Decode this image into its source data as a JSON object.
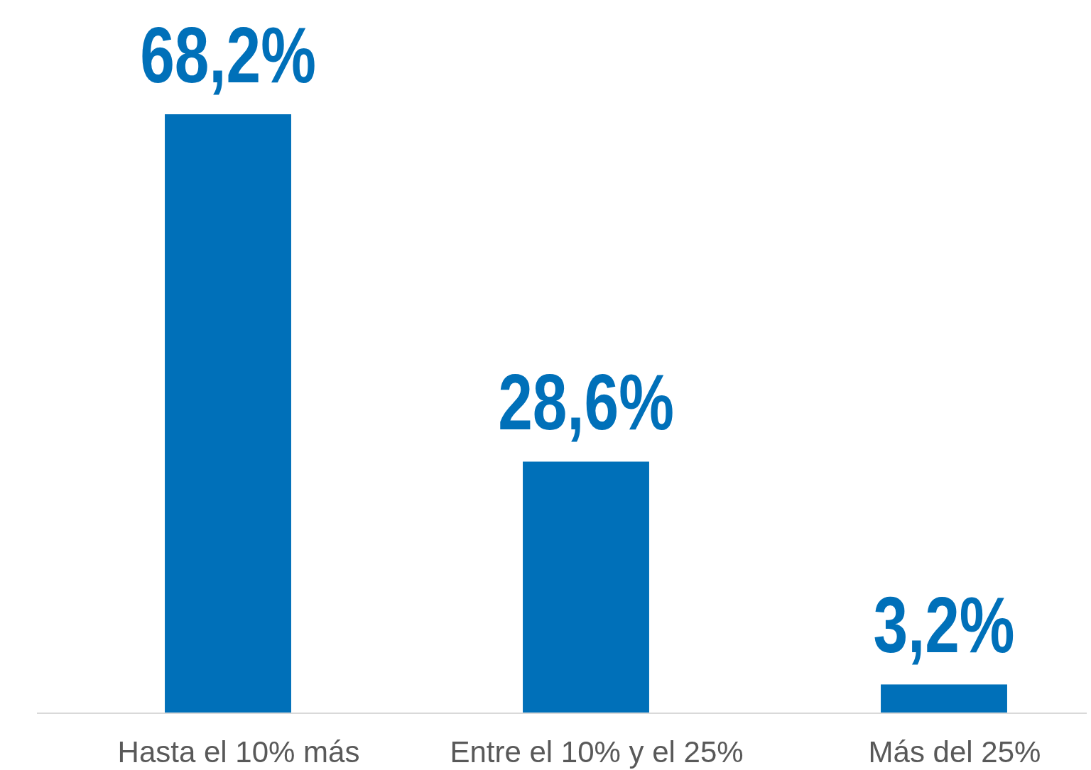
{
  "chart_data": {
    "type": "bar",
    "categories": [
      "Hasta el 10% más",
      "Entre el 10% y el 25%",
      "Más del 25%"
    ],
    "values": [
      68.2,
      28.6,
      3.2
    ],
    "color": "#0070b9",
    "value_labels": [
      "68,2%",
      "28,6%",
      "3,2%"
    ]
  }
}
